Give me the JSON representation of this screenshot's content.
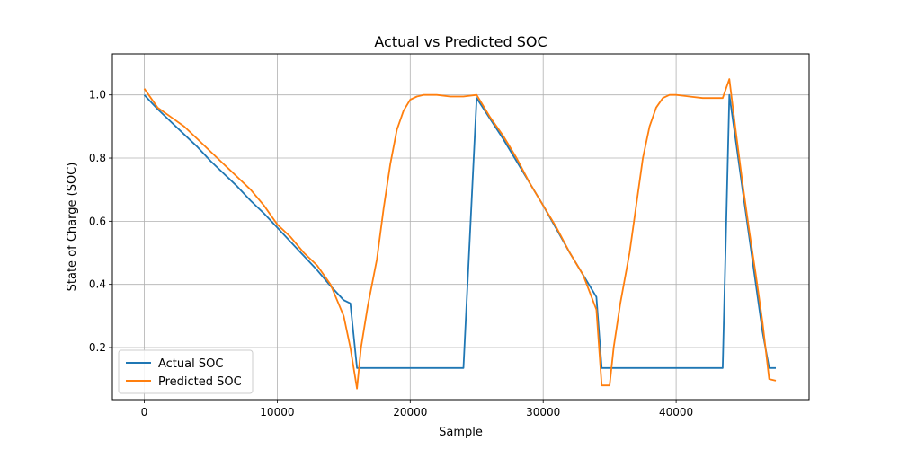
{
  "chart_data": {
    "type": "line",
    "title": "Actual vs Predicted SOC",
    "xlabel": "Sample",
    "ylabel": "State of Charge (SOC)",
    "xlim": [
      -2400,
      50000
    ],
    "ylim": [
      0.035,
      1.13
    ],
    "xticks": [
      0,
      10000,
      20000,
      30000,
      40000
    ],
    "xtick_labels": [
      "0",
      "10000",
      "20000",
      "30000",
      "40000"
    ],
    "yticks": [
      0.2,
      0.4,
      0.6,
      0.8,
      1.0
    ],
    "ytick_labels": [
      "0.2",
      "0.4",
      "0.6",
      "0.8",
      "1.0"
    ],
    "grid": true,
    "legend_position": "lower-left",
    "series": [
      {
        "name": "Actual SOC",
        "color": "#1f77b4",
        "x": [
          0,
          1000,
          2000,
          3000,
          4000,
          5000,
          6000,
          7000,
          8000,
          9000,
          10000,
          11000,
          12000,
          13000,
          14000,
          15000,
          15500,
          16000,
          16300,
          16800,
          17500,
          18000,
          18500,
          19000,
          19500,
          20000,
          20500,
          21000,
          22000,
          23000,
          24000,
          25000,
          26000,
          27000,
          28000,
          29000,
          30000,
          31000,
          32000,
          33000,
          34000,
          34400,
          35000,
          35300,
          35800,
          36500,
          37000,
          37500,
          38000,
          38500,
          39000,
          39500,
          40000,
          41000,
          42000,
          43000,
          43500,
          44000,
          44500,
          45000,
          45500,
          46000,
          46500,
          47000,
          47500
        ],
        "y": [
          1.0,
          0.955,
          0.915,
          0.875,
          0.835,
          0.79,
          0.75,
          0.71,
          0.665,
          0.625,
          0.58,
          0.535,
          0.49,
          0.445,
          0.395,
          0.35,
          0.34,
          0.135,
          0.135,
          0.135,
          0.135,
          0.135,
          0.135,
          0.135,
          0.135,
          0.135,
          0.135,
          0.135,
          0.135,
          0.135,
          0.135,
          0.99,
          0.925,
          0.86,
          0.79,
          0.72,
          0.65,
          0.575,
          0.5,
          0.43,
          0.36,
          0.135,
          0.135,
          0.135,
          0.135,
          0.135,
          0.135,
          0.135,
          0.135,
          0.135,
          0.135,
          0.135,
          0.135,
          0.135,
          0.135,
          0.135,
          0.135,
          1.0,
          0.85,
          0.7,
          0.55,
          0.4,
          0.25,
          0.135,
          0.135
        ],
        "note_shape": "discharge-then-charge"
      },
      {
        "name": "Predicted SOC",
        "color": "#ff7f0e",
        "x": [
          0,
          1000,
          2000,
          3000,
          4000,
          5000,
          6000,
          7000,
          8000,
          9000,
          10000,
          11000,
          12000,
          13000,
          14000,
          15000,
          15500,
          16000,
          16300,
          16800,
          17500,
          18000,
          18500,
          19000,
          19500,
          20000,
          20500,
          21000,
          22000,
          23000,
          24000,
          25000,
          26000,
          27000,
          28000,
          29000,
          30000,
          31000,
          32000,
          33000,
          34000,
          34400,
          35000,
          35300,
          35800,
          36500,
          37000,
          37500,
          38000,
          38500,
          39000,
          39500,
          40000,
          41000,
          42000,
          43000,
          43500,
          44000,
          44500,
          45000,
          45500,
          46000,
          46500,
          47000,
          47500
        ],
        "y": [
          1.02,
          0.96,
          0.93,
          0.9,
          0.86,
          0.82,
          0.78,
          0.74,
          0.7,
          0.65,
          0.59,
          0.55,
          0.5,
          0.46,
          0.4,
          0.3,
          0.2,
          0.07,
          0.2,
          0.33,
          0.48,
          0.64,
          0.78,
          0.89,
          0.95,
          0.985,
          0.995,
          1.0,
          1.0,
          0.995,
          0.995,
          1.0,
          0.93,
          0.87,
          0.8,
          0.72,
          0.65,
          0.58,
          0.5,
          0.43,
          0.32,
          0.08,
          0.08,
          0.2,
          0.34,
          0.5,
          0.65,
          0.8,
          0.9,
          0.96,
          0.99,
          1.0,
          1.0,
          0.995,
          0.99,
          0.99,
          0.99,
          1.05,
          0.88,
          0.72,
          0.57,
          0.43,
          0.28,
          0.1,
          0.095
        ]
      }
    ]
  }
}
